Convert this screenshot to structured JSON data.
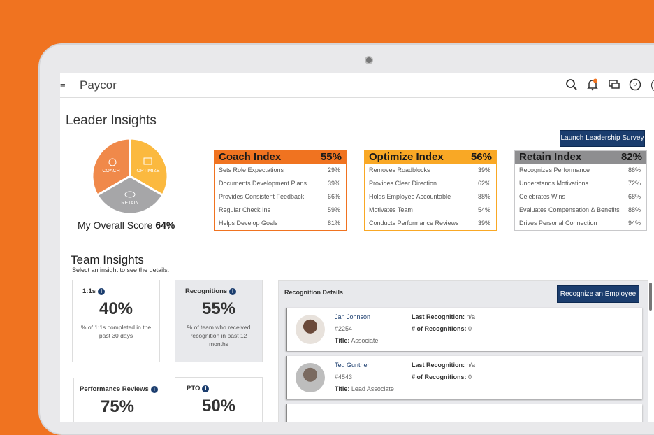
{
  "header": {
    "logo": "Paycor",
    "icons": [
      "menu-icon",
      "search-icon",
      "bell-icon",
      "chat-icon",
      "help-icon"
    ],
    "notification_dot_color": "#f07320"
  },
  "page_title": "Leader Insights",
  "launch_button": "Launch Leadership Survey",
  "wheel": {
    "segments": [
      "COACH",
      "OPTIMIZE",
      "RETAIN"
    ],
    "colors": {
      "coach": "#f0894a",
      "optimize": "#fbb93f",
      "retain": "#a6a6a8"
    }
  },
  "overall": {
    "label": "My Overall Score",
    "value": "64%"
  },
  "indices": [
    {
      "title": "Coach Index",
      "value": "55%",
      "color": "#f07320",
      "items": [
        {
          "label": "Sets Role Expectations",
          "value": "29%"
        },
        {
          "label": "Documents Development Plans",
          "value": "39%"
        },
        {
          "label": "Provides Consistent Feedback",
          "value": "66%"
        },
        {
          "label": "Regular Check Ins",
          "value": "59%"
        },
        {
          "label": "Helps Develop Goals",
          "value": "81%"
        }
      ]
    },
    {
      "title": "Optimize Index",
      "value": "56%",
      "color": "#f9a825",
      "items": [
        {
          "label": "Removes Roadblocks",
          "value": "39%"
        },
        {
          "label": "Provides Clear Direction",
          "value": "62%"
        },
        {
          "label": "Holds Employee Accountable",
          "value": "88%"
        },
        {
          "label": "Motivates Team",
          "value": "54%"
        },
        {
          "label": "Conducts Performance Reviews",
          "value": "39%"
        }
      ]
    },
    {
      "title": "Retain Index",
      "value": "82%",
      "color": "#8e8e90",
      "items": [
        {
          "label": "Recognizes Performance",
          "value": "86%"
        },
        {
          "label": "Understands Motivations",
          "value": "72%"
        },
        {
          "label": "Celebrates Wins",
          "value": "68%"
        },
        {
          "label": "Evaluates Compensation & Benefits",
          "value": "88%"
        },
        {
          "label": "Drives Personal Connection",
          "value": "94%"
        }
      ]
    }
  ],
  "team": {
    "title": "Team Insights",
    "subtitle": "Select an insight to see the details.",
    "cards": [
      {
        "title": "1:1s",
        "value": "40%",
        "desc": "% of 1:1s completed in the past 30 days"
      },
      {
        "title": "Recognitions",
        "value": "55%",
        "desc": "% of team who received recognition in past 12 months",
        "selected": true
      },
      {
        "title": "Performance Reviews",
        "value": "75%",
        "desc": ""
      },
      {
        "title": "PTO",
        "value": "50%",
        "desc": ""
      }
    ]
  },
  "recognition": {
    "title": "Recognition Details",
    "button": "Recognize an Employee",
    "labels": {
      "last": "Last Recognition:",
      "count": "# of Recognitions:",
      "title": "Title:"
    },
    "employees": [
      {
        "name": "Jan Johnson",
        "id": "#2254",
        "title": "Associate",
        "last": "n/a",
        "count": "0"
      },
      {
        "name": "Ted Gunther",
        "id": "#4543",
        "title": "Lead Associate",
        "last": "n/a",
        "count": "0"
      }
    ]
  }
}
